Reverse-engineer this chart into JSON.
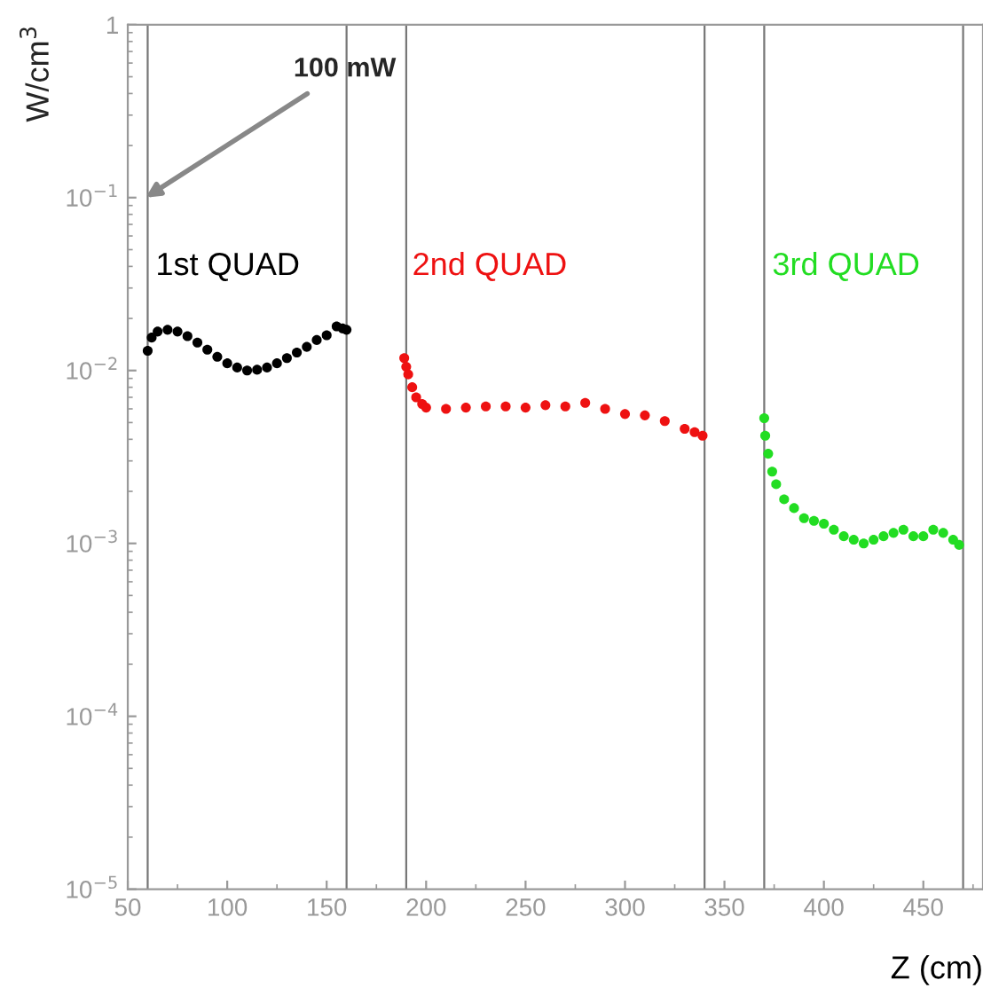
{
  "chart_data": {
    "type": "scatter",
    "xlabel": "Z (cm)",
    "ylabel": "W/cm$^{3}$",
    "log": "y",
    "marker": "circle",
    "grid": false,
    "legend": false,
    "xlim": [
      50,
      480
    ],
    "xticks": [
      50,
      100,
      150,
      200,
      250,
      300,
      350,
      400,
      450
    ],
    "ylim": [
      1e-05,
      1
    ],
    "yticks": [
      {
        "value": 1e-05,
        "label": "10$^{−5}$"
      },
      {
        "value": 0.0001,
        "label": "10$^{−4}$"
      },
      {
        "value": 0.001,
        "label": "10$^{−3}$"
      },
      {
        "value": 0.01,
        "label": "10$^{−2}$"
      },
      {
        "value": 0.1,
        "label": "10$^{−1}$"
      },
      {
        "value": 1,
        "label": "1"
      }
    ],
    "series": [
      {
        "name": "1st QUAD",
        "color": "#000000",
        "x": [
          60,
          62,
          65,
          70,
          75,
          80,
          85,
          90,
          95,
          100,
          105,
          110,
          115,
          120,
          125,
          130,
          135,
          140,
          145,
          150,
          155,
          158,
          160
        ],
        "values": [
          0.013,
          0.0155,
          0.0168,
          0.0172,
          0.0168,
          0.0158,
          0.0145,
          0.0132,
          0.012,
          0.011,
          0.0104,
          0.01,
          0.0101,
          0.0104,
          0.011,
          0.0118,
          0.0127,
          0.0137,
          0.015,
          0.016,
          0.018,
          0.0175,
          0.0172
        ]
      },
      {
        "name": "2nd QUAD",
        "color": "#ee1111",
        "x": [
          189,
          190,
          191,
          193,
          195,
          198,
          200,
          210,
          220,
          230,
          240,
          250,
          260,
          270,
          280,
          290,
          300,
          310,
          320,
          330,
          335,
          339
        ],
        "values": [
          0.0118,
          0.0105,
          0.0095,
          0.008,
          0.007,
          0.0064,
          0.0061,
          0.006,
          0.0061,
          0.0062,
          0.0062,
          0.0061,
          0.0063,
          0.0062,
          0.0065,
          0.006,
          0.0056,
          0.0055,
          0.0051,
          0.0046,
          0.0044,
          0.0042
        ]
      },
      {
        "name": "3rd QUAD",
        "color": "#22dd22",
        "x": [
          370,
          370.5,
          372,
          374,
          376,
          380,
          385,
          390,
          395,
          400,
          405,
          410,
          415,
          420,
          425,
          430,
          435,
          440,
          445,
          450,
          455,
          460,
          465,
          468
        ],
        "values": [
          0.0053,
          0.0042,
          0.0033,
          0.0026,
          0.0022,
          0.0018,
          0.0016,
          0.0014,
          0.00135,
          0.0013,
          0.0012,
          0.0011,
          0.00105,
          0.001,
          0.00105,
          0.0011,
          0.00115,
          0.0012,
          0.0011,
          0.0011,
          0.0012,
          0.00115,
          0.00105,
          0.00098
        ]
      }
    ],
    "ref_lines": [
      {
        "axis": "x",
        "value": 60,
        "color": "#777777"
      },
      {
        "axis": "x",
        "value": 160,
        "color": "#777777"
      },
      {
        "axis": "x",
        "value": 190,
        "color": "#777777"
      },
      {
        "axis": "x",
        "value": 340,
        "color": "#777777"
      },
      {
        "axis": "x",
        "value": 370,
        "color": "#777777"
      },
      {
        "axis": "x",
        "value": 470,
        "color": "#777777"
      }
    ],
    "annotations": [
      {
        "text": "100 mW",
        "x": 59,
        "y": 0.1
      }
    ]
  }
}
